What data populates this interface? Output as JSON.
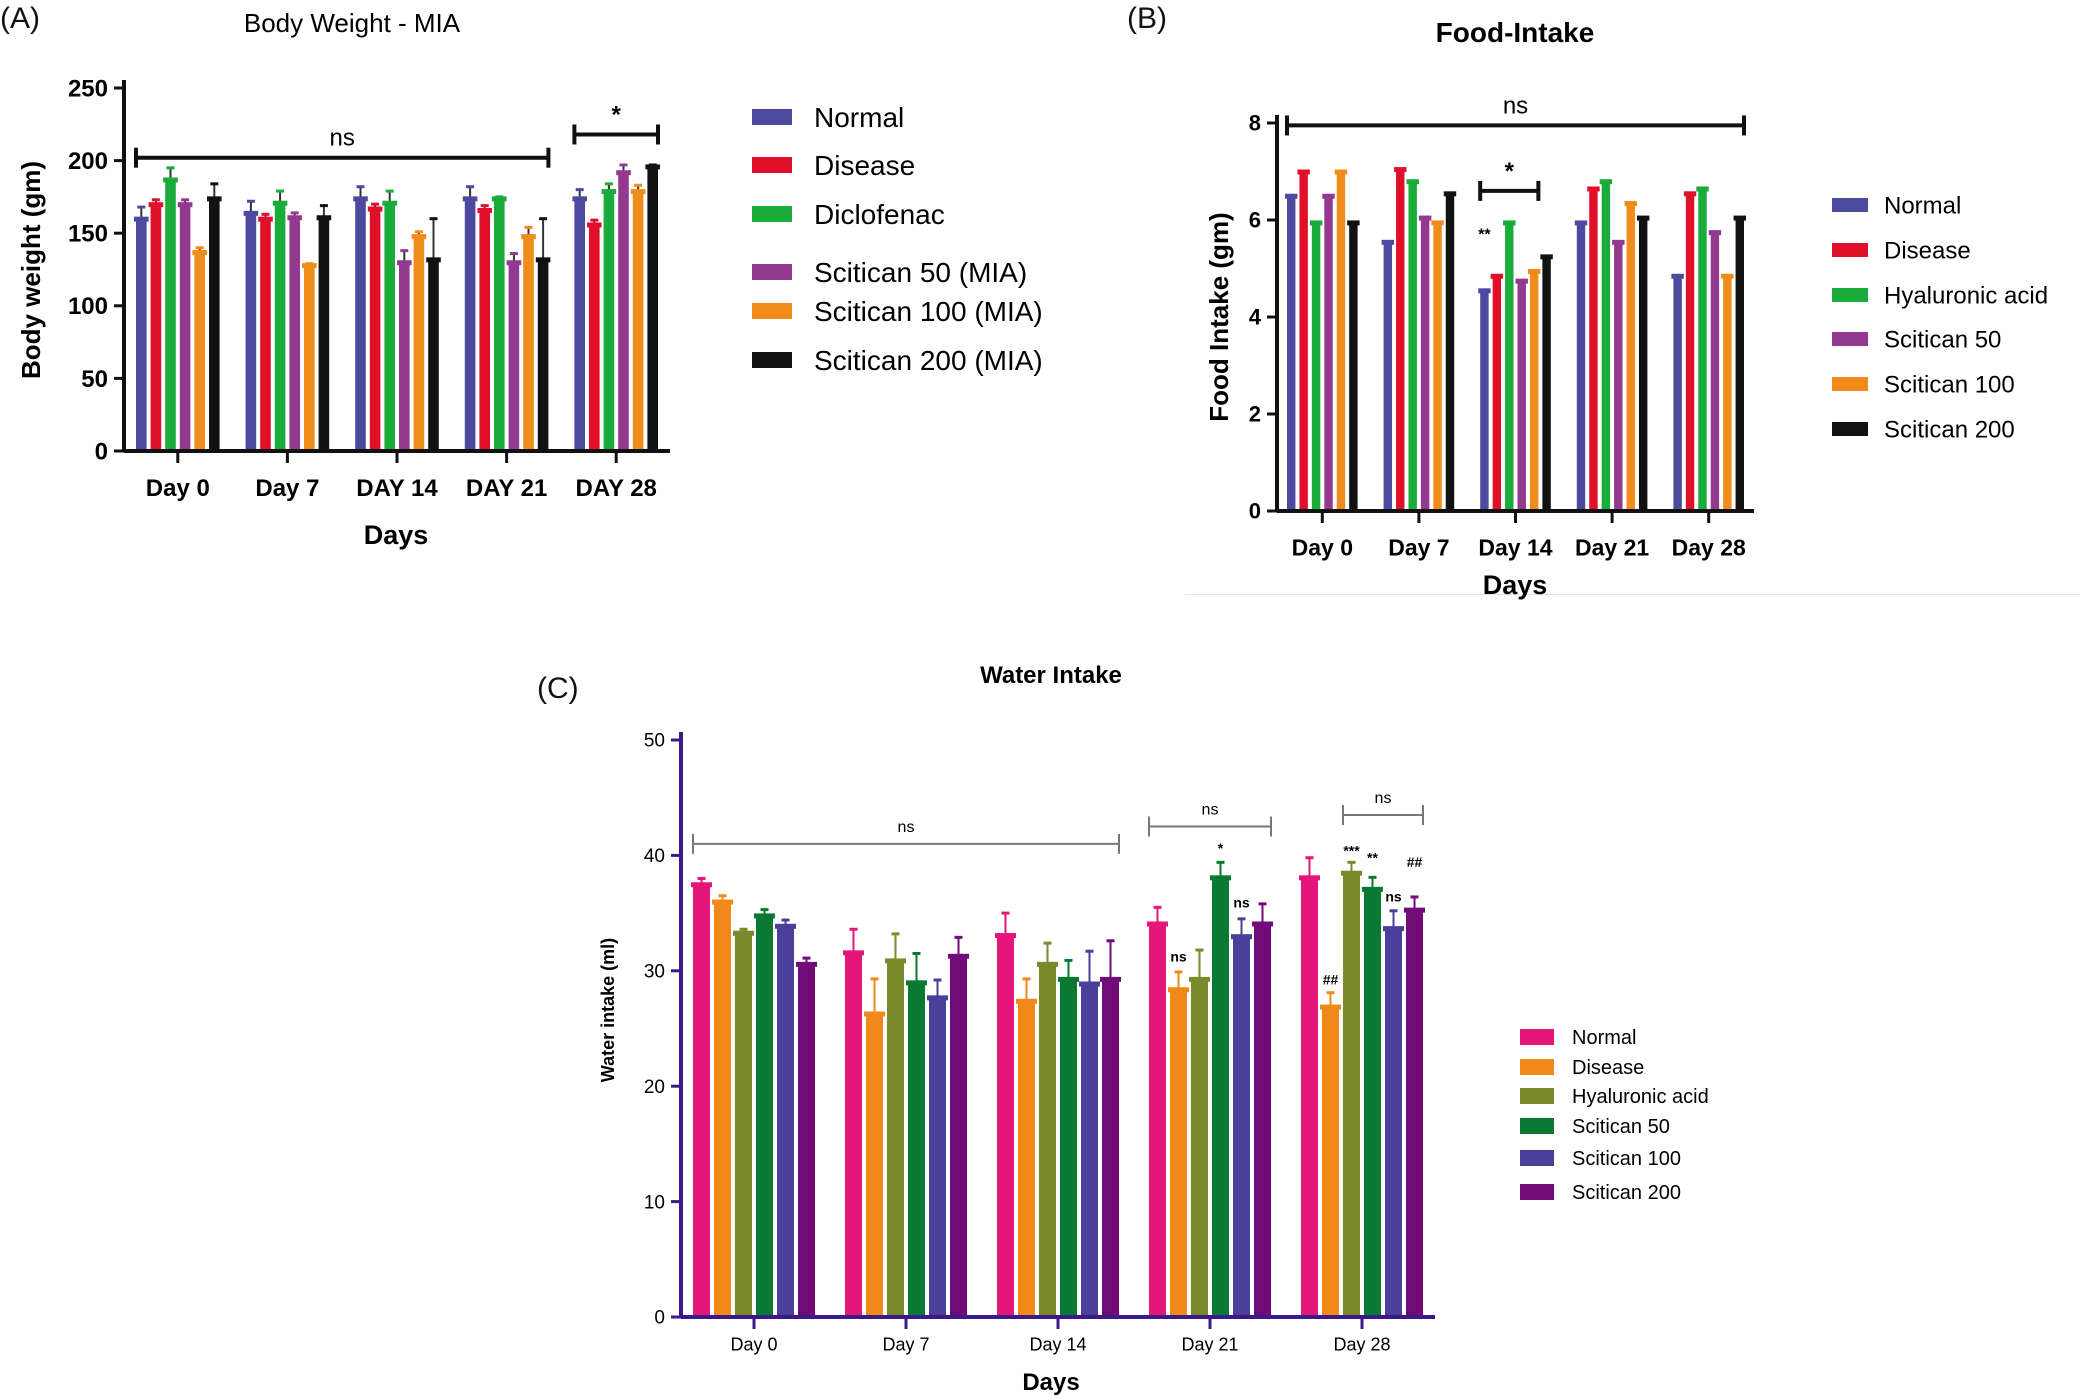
{
  "chart_data": [
    {
      "panel": "(A)",
      "type": "bar",
      "title": "Body Weight - MIA",
      "xlabel": "Days",
      "ylabel": "Body weight (gm)",
      "ylim": [
        0,
        250
      ],
      "yticks": [
        0,
        50,
        100,
        150,
        200,
        250
      ],
      "categories": [
        "Day 0",
        "Day 7",
        "DAY 14",
        "DAY 21",
        "DAY 28"
      ],
      "legend_position": "right",
      "series": [
        {
          "name": "Normal",
          "color": "#4b4a9e",
          "values": [
            160,
            164,
            174,
            174,
            174
          ],
          "errors": [
            8,
            8,
            8,
            8,
            6
          ]
        },
        {
          "name": "Disease",
          "color": "#e0102a",
          "values": [
            170,
            160,
            167,
            166,
            156
          ],
          "errors": [
            3,
            3,
            3,
            3,
            3
          ]
        },
        {
          "name": "Diclofenac",
          "color": "#1aac3a",
          "values": [
            187,
            171,
            171,
            174,
            179
          ],
          "errors": [
            8,
            8,
            8,
            1,
            5
          ]
        },
        {
          "name": "Scitican 50 (MIA)",
          "color": "#933a90",
          "values": [
            170,
            161,
            130,
            130,
            192
          ],
          "errors": [
            3,
            3,
            8,
            6,
            5
          ]
        },
        {
          "name": "Scitican 100 (MIA)",
          "color": "#f08c1a",
          "values": [
            137,
            128,
            148,
            148,
            179
          ],
          "errors": [
            3,
            1,
            3,
            6,
            4
          ]
        },
        {
          "name": "Scitican 200 (MIA)",
          "color": "#111111",
          "values": [
            174,
            161,
            132,
            132,
            196
          ],
          "errors": [
            10,
            8,
            28,
            28,
            1
          ]
        }
      ],
      "annotations": [
        {
          "label": "ns",
          "from": [
            0,
            0
          ],
          "to": [
            3,
            5
          ],
          "y": 202
        },
        {
          "label": "*",
          "from": [
            4,
            0
          ],
          "to": [
            4,
            5
          ],
          "y": 218
        }
      ],
      "point_labels": []
    },
    {
      "panel": "(B)",
      "type": "bar",
      "title": "Food-Intake",
      "xlabel": "Days",
      "ylabel": "Food Intake (gm)",
      "ylim": [
        0,
        8
      ],
      "yticks": [
        0,
        2,
        4,
        6,
        8
      ],
      "categories": [
        "Day 0",
        "Day 7",
        "Day 14",
        "Day 21",
        "Day 28"
      ],
      "legend_position": "right",
      "series": [
        {
          "name": "Normal",
          "color": "#4b4a9e",
          "values": [
            6.5,
            5.55,
            4.55,
            5.95,
            4.85
          ]
        },
        {
          "name": "Disease",
          "color": "#e0102a",
          "values": [
            7.0,
            7.05,
            4.85,
            6.65,
            6.55
          ]
        },
        {
          "name": "Hyaluronic acid",
          "color": "#1aac3a",
          "values": [
            5.95,
            6.8,
            5.95,
            6.8,
            6.65
          ]
        },
        {
          "name": "Scitican 50",
          "color": "#933a90",
          "values": [
            6.5,
            6.05,
            4.75,
            5.55,
            5.75
          ]
        },
        {
          "name": "Scitican 100",
          "color": "#f08c1a",
          "values": [
            7.0,
            5.95,
            4.95,
            6.35,
            4.85
          ]
        },
        {
          "name": "Scitican 200",
          "color": "#111111",
          "values": [
            5.95,
            6.55,
            5.25,
            6.05,
            6.05
          ]
        }
      ],
      "annotations": [
        {
          "label": "ns",
          "from": [
            0,
            0
          ],
          "to": [
            4,
            5
          ],
          "y": 7.95
        },
        {
          "label": "*",
          "from": [
            2,
            0
          ],
          "to": [
            2,
            4
          ],
          "y": 6.6
        }
      ],
      "point_labels": [
        {
          "label": "**",
          "group": 2,
          "bar": 0,
          "y": 5.6
        }
      ]
    },
    {
      "panel": "(C)",
      "type": "bar",
      "title": "Water Intake",
      "xlabel": "Days",
      "ylabel": "Water intake (ml)",
      "ylim": [
        0,
        50
      ],
      "yticks": [
        0,
        10,
        20,
        30,
        40,
        50
      ],
      "categories": [
        "Day 0",
        "Day 7",
        "Day 14",
        "Day 21",
        "Day 28"
      ],
      "legend_position": "right",
      "series": [
        {
          "name": "Normal",
          "color": "#e5157a",
          "values": [
            37.5,
            31.6,
            33.1,
            34.1,
            38.1
          ],
          "errors": [
            0.5,
            2.0,
            1.9,
            1.4,
            1.7
          ]
        },
        {
          "name": "Disease",
          "color": "#f0891a",
          "values": [
            36.0,
            26.3,
            27.4,
            28.4,
            26.9
          ],
          "errors": [
            0.5,
            3.0,
            1.9,
            1.5,
            1.2
          ]
        },
        {
          "name": "Hyaluronic acid",
          "color": "#7a8a2a",
          "values": [
            33.3,
            30.9,
            30.6,
            29.3,
            38.5
          ],
          "errors": [
            0.3,
            2.3,
            1.8,
            2.5,
            0.9
          ]
        },
        {
          "name": "Scitican 50",
          "color": "#0a7a32",
          "values": [
            34.8,
            29.0,
            29.3,
            38.1,
            37.1
          ],
          "errors": [
            0.5,
            2.5,
            1.6,
            1.3,
            1.0
          ]
        },
        {
          "name": "Scitican 100",
          "color": "#4a3f9a",
          "values": [
            33.9,
            27.7,
            28.9,
            33.0,
            33.7
          ],
          "errors": [
            0.5,
            1.5,
            2.8,
            1.5,
            1.5
          ]
        },
        {
          "name": "Scitican 200",
          "color": "#720a7a",
          "values": [
            30.6,
            31.3,
            29.3,
            34.1,
            35.3
          ],
          "errors": [
            0.5,
            1.6,
            3.3,
            1.7,
            1.1
          ]
        }
      ],
      "annotations": [
        {
          "label": "ns",
          "from": [
            0,
            0
          ],
          "to": [
            2,
            5
          ],
          "y": 41
        },
        {
          "label": "ns",
          "from": [
            3,
            0
          ],
          "to": [
            3,
            5
          ],
          "y": 42.5
        },
        {
          "label": "ns",
          "from": [
            4,
            2
          ],
          "to": [
            4,
            5
          ],
          "y": 43.5
        }
      ],
      "point_labels": [
        {
          "label": "ns",
          "group": 3,
          "bar": 1,
          "y": 30.8
        },
        {
          "label": "*",
          "group": 3,
          "bar": 3,
          "y": 40.2
        },
        {
          "label": "ns",
          "group": 3,
          "bar": 4,
          "y": 35.5
        },
        {
          "label": "##",
          "group": 4,
          "bar": 1,
          "y": 28.8
        },
        {
          "label": "***",
          "group": 4,
          "bar": 2,
          "y": 40.0
        },
        {
          "label": "**",
          "group": 4,
          "bar": 3,
          "y": 39.4
        },
        {
          "label": "ns",
          "group": 4,
          "bar": 4,
          "y": 36.0
        },
        {
          "label": "##",
          "group": 4,
          "bar": 5,
          "y": 39.0
        }
      ]
    }
  ]
}
